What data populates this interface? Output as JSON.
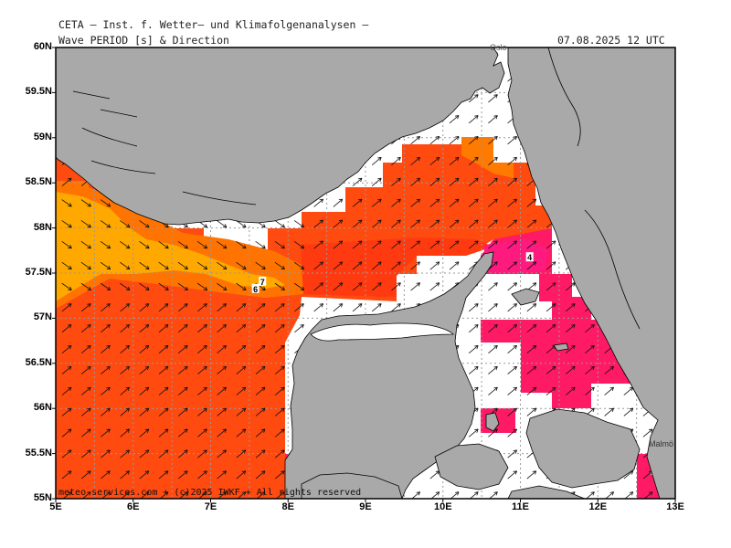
{
  "header": {
    "line1": "CETA – Inst. f. Wetter– und Klimafolgenanalysen –",
    "line2": "Wave PERIOD [s] & Direction",
    "datetime": "07.08.2025 12 UTC"
  },
  "axes": {
    "lat_labels": [
      "60N",
      "59.5N",
      "59N",
      "58.5N",
      "58N",
      "57.5N",
      "57N",
      "56.5N",
      "56N",
      "55.5N",
      "55N"
    ],
    "lon_labels": [
      "5E",
      "6E",
      "7E",
      "8E",
      "9E",
      "10E",
      "11E",
      "12E",
      "13E"
    ]
  },
  "place_labels": {
    "oslo": "Oslo",
    "malmo": "Malmö"
  },
  "period_labels": [
    {
      "value": "7",
      "lon": 7.67,
      "lat": 57.4
    },
    {
      "value": "6",
      "lon": 7.58,
      "lat": 57.32
    },
    {
      "value": "4",
      "lon": 11.12,
      "lat": 57.67
    }
  ],
  "legend": {
    "period_colors": {
      "4": "#ff1a66",
      "5": "#ff4013",
      "6": "#ff6a00",
      "7": "#ffaa00"
    },
    "land_color": "#a9a9a9",
    "no_data_color": "#ffffff"
  },
  "credit": "meteo-services.com + (c)2025 IWKF + All rights reserved"
}
